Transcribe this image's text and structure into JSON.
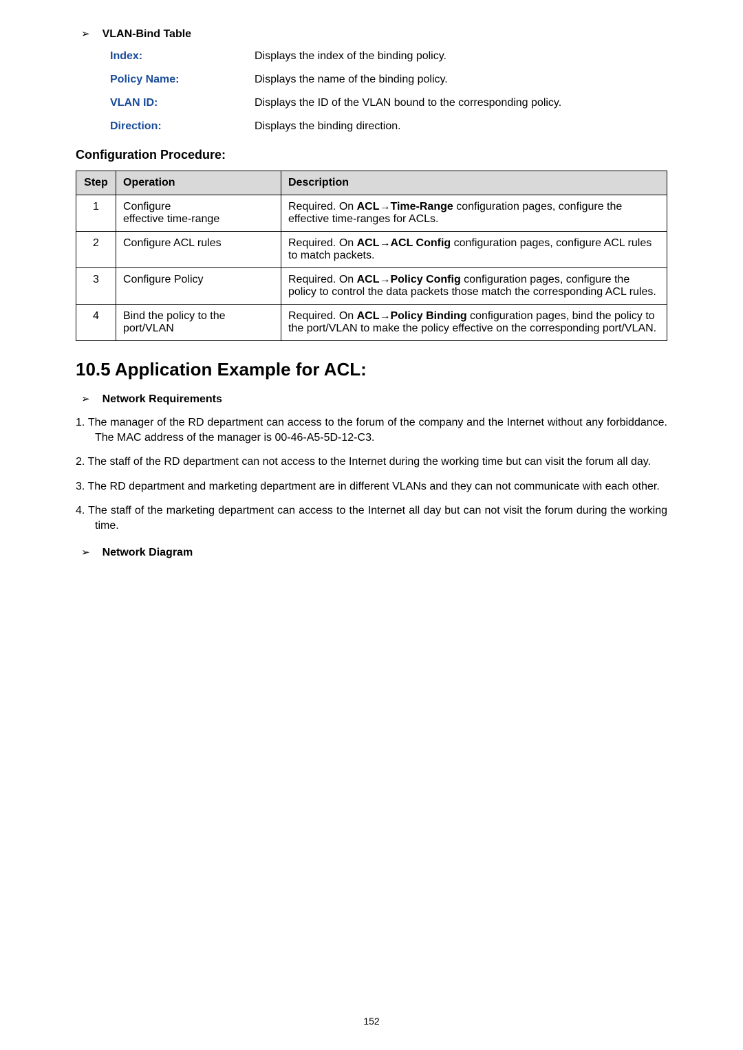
{
  "vlan_bind": {
    "label": "VLAN-Bind Table",
    "rows": [
      {
        "term": "Index:",
        "desc": "Displays the index of the binding policy."
      },
      {
        "term": "Policy Name:",
        "desc": "Displays the name of the binding policy."
      },
      {
        "term": "VLAN ID:",
        "desc": "Displays the ID of the VLAN bound to the corresponding policy."
      },
      {
        "term": "Direction:",
        "desc": "Displays the binding direction."
      }
    ]
  },
  "config_procedure": {
    "heading": "Configuration Procedure:",
    "headers": {
      "step": "Step",
      "operation": "Operation",
      "description": "Description"
    },
    "rows": [
      {
        "step": "1",
        "op_pre": "Configure",
        "op_post": "effective time-range",
        "desc_pre": "Required. On ",
        "desc_bold": "ACL→Time-Range",
        "desc_post": " configuration pages, configure the effective time-ranges for ACLs."
      },
      {
        "step": "2",
        "op": "Configure ACL rules",
        "desc_pre": "Required. On ",
        "desc_bold": "ACL→ACL Config",
        "desc_post": " configuration pages, configure ACL rules to match packets."
      },
      {
        "step": "3",
        "op": "Configure Policy",
        "desc_pre": "Required. On ",
        "desc_bold": "ACL→Policy Config",
        "desc_post": " configuration pages, configure the policy to control the data packets those match the corresponding ACL rules."
      },
      {
        "step": "4",
        "op": "Bind the policy to the port/VLAN",
        "desc_pre": "Required. On ",
        "desc_bold": "ACL→Policy Binding",
        "desc_post": " configuration pages, bind the policy to the port/VLAN to make the policy effective on the corresponding port/VLAN."
      }
    ]
  },
  "example": {
    "heading": "10.5 Application Example for ACL:",
    "network_requirements_label": "Network Requirements",
    "requirements": [
      "1. The manager of the RD department can access to the forum of the company and the Internet without any forbiddance. The MAC address of the manager is 00-46-A5-5D-12-C3.",
      "2. The staff of the RD department can not access to the Internet during the working time but can visit the forum all day.",
      "3. The RD department and marketing department are in different VLANs and they can not communicate with each other.",
      "4. The staff of the marketing department can access to the Internet all day but can not visit the forum during the working time."
    ],
    "network_diagram_label": "Network Diagram"
  },
  "page_number": "152",
  "colors": {
    "term_color": "#1a4c99",
    "header_bg": "#d9d9d9",
    "border": "#000000",
    "text": "#000000"
  }
}
